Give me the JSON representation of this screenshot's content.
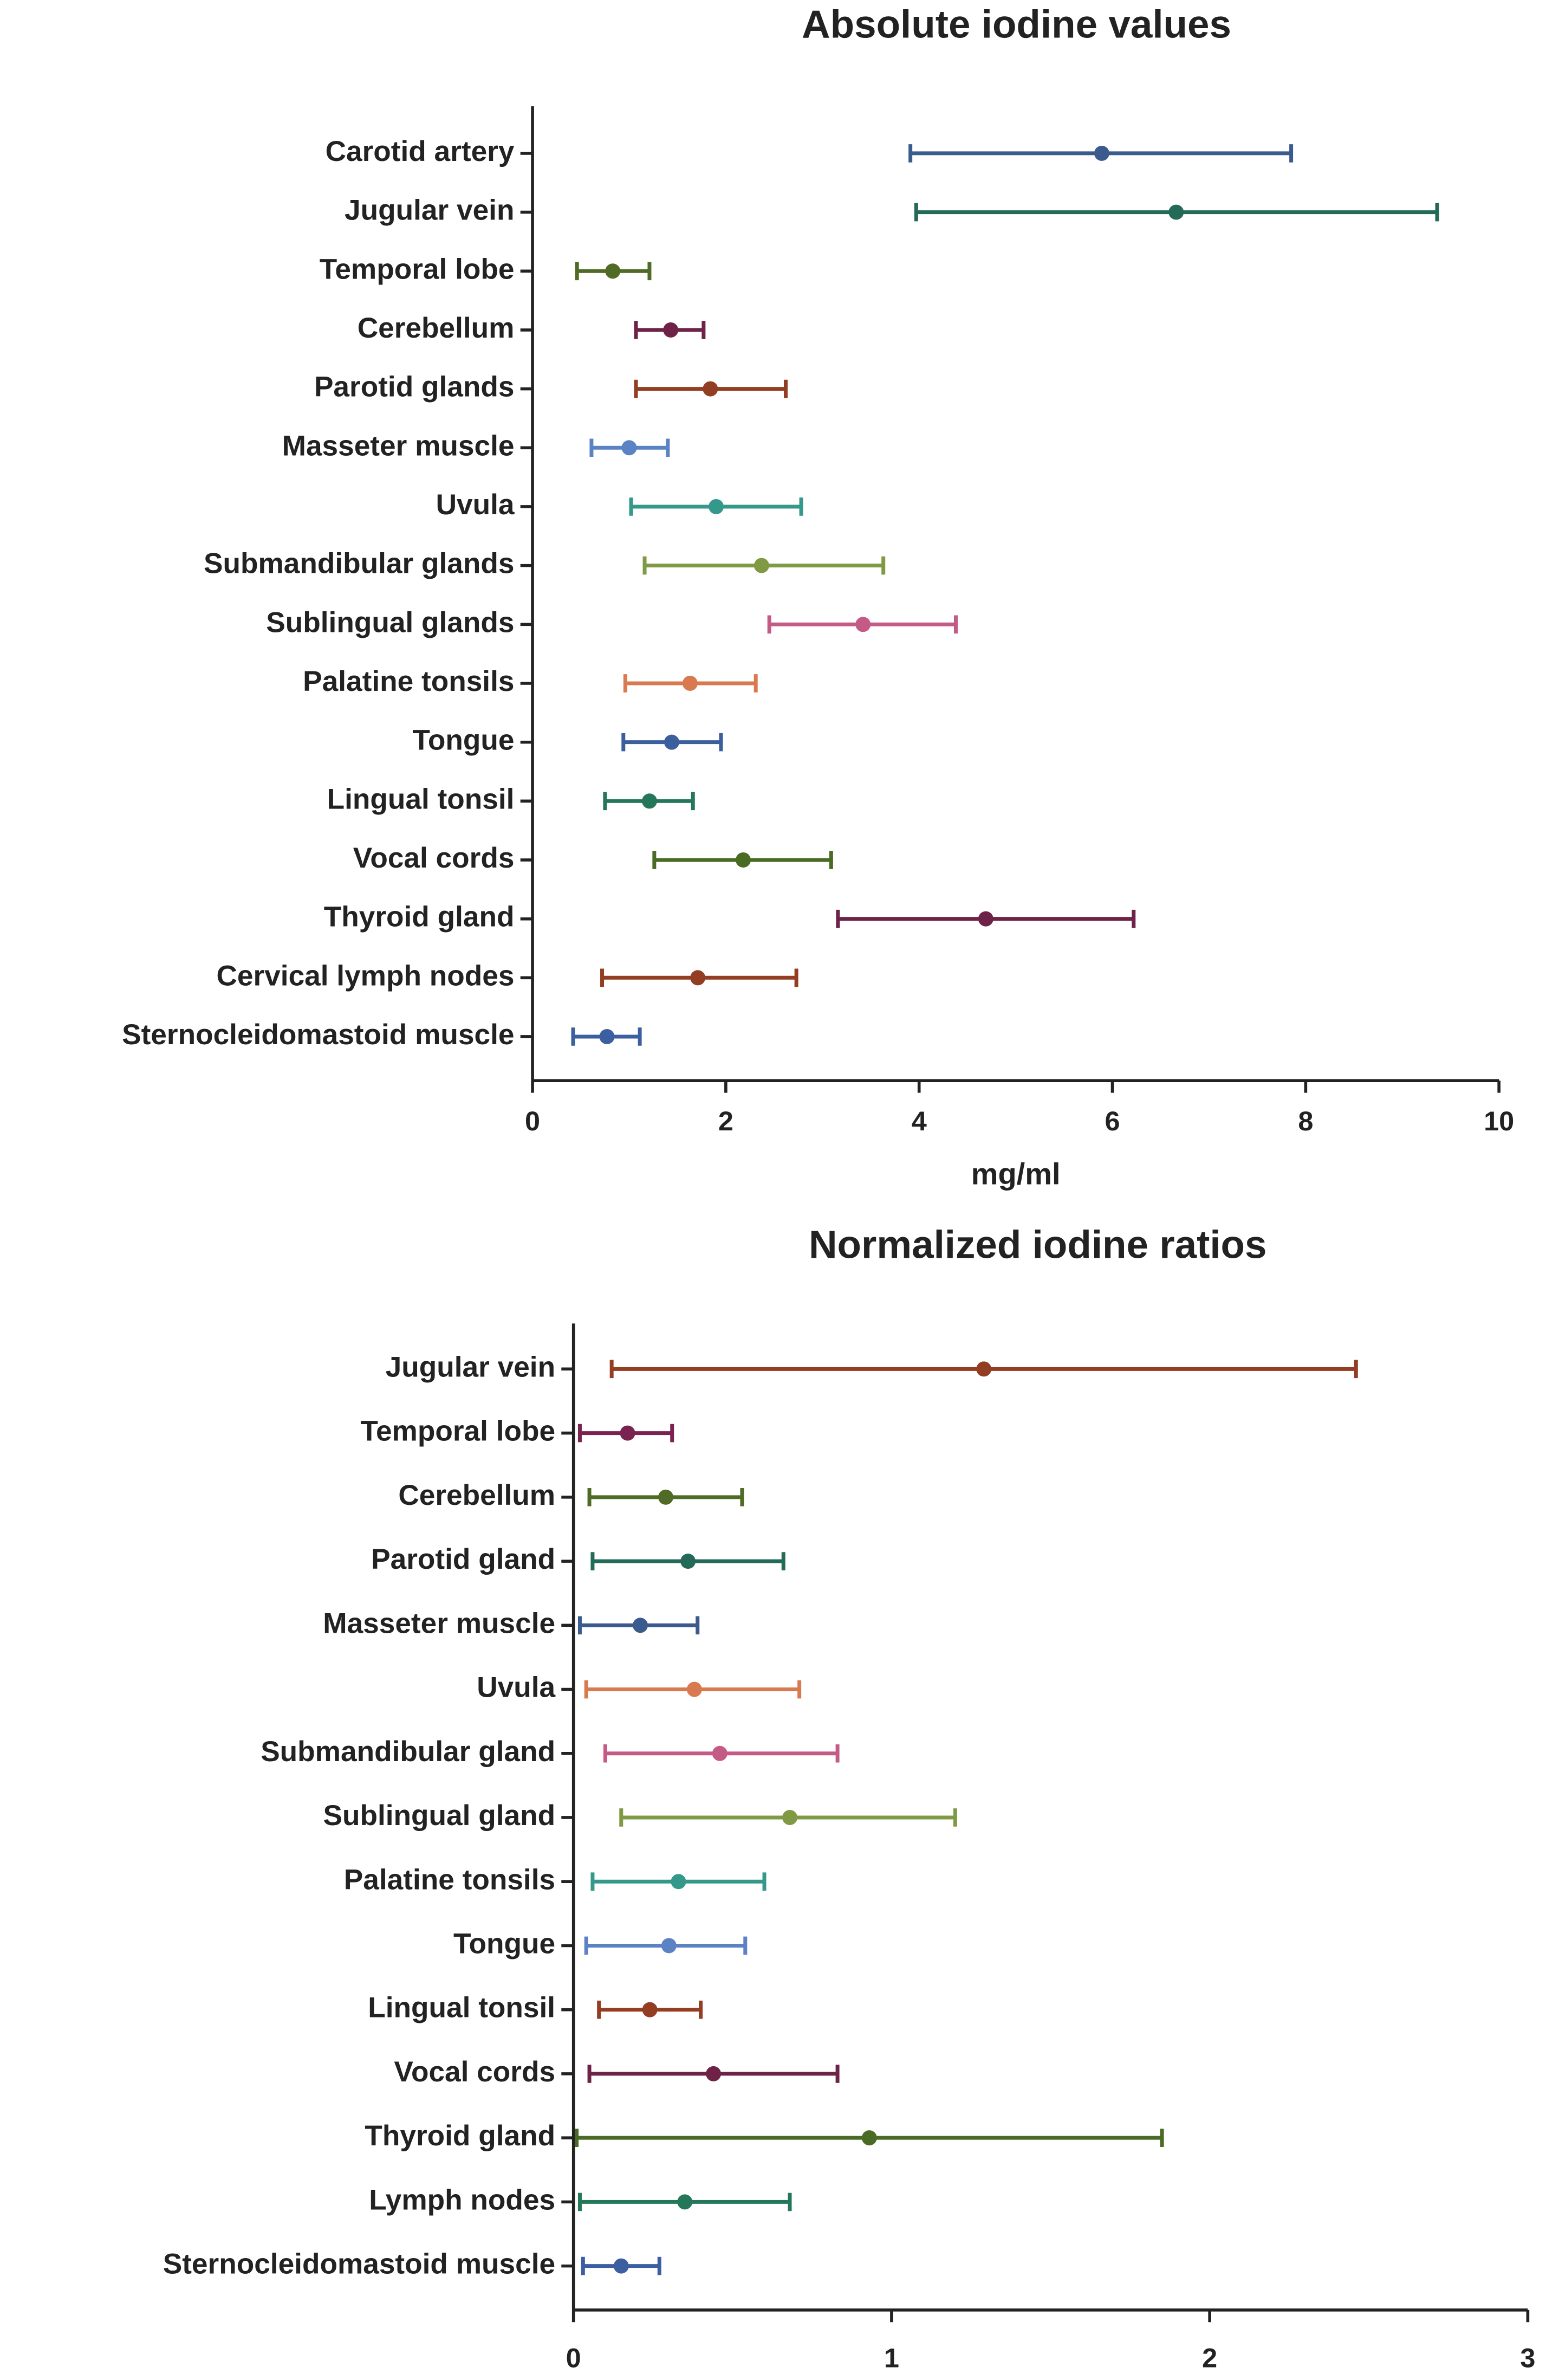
{
  "chart_data": [
    {
      "type": "errorbar",
      "title": "Absolute iodine values",
      "xlabel": "mg/ml",
      "categories": [
        "Carotid artery",
        "Jugular vein",
        "Temporal lobe",
        "Cerebellum",
        "Parotid glands",
        "Masseter muscle",
        "Uvula",
        "Submandibular glands",
        "Sublingual glands",
        "Palatine tonsils",
        "Tongue",
        "Lingual tonsil",
        "Vocal cords",
        "Thyroid gland",
        "Cervical lymph nodes",
        "Sternocleidomastoid muscle"
      ],
      "values": [
        5.89,
        6.66,
        0.83,
        1.43,
        1.84,
        1.0,
        1.9,
        2.37,
        3.42,
        1.63,
        1.44,
        1.21,
        2.18,
        4.69,
        1.71,
        0.77
      ],
      "lower": [
        3.91,
        3.97,
        0.46,
        1.07,
        1.07,
        0.61,
        1.02,
        1.16,
        2.45,
        0.96,
        0.94,
        0.75,
        1.26,
        3.16,
        0.72,
        0.42
      ],
      "upper": [
        7.85,
        9.36,
        1.21,
        1.77,
        2.62,
        1.4,
        2.78,
        3.63,
        4.38,
        2.31,
        1.95,
        1.66,
        3.09,
        6.22,
        2.73,
        1.11
      ],
      "colors": [
        "#3b5b8e",
        "#236b58",
        "#4f6b25",
        "#6e2248",
        "#933e22",
        "#5b82c4",
        "#34998a",
        "#7f9a43",
        "#c45b86",
        "#d9794f",
        "#3b5f9c",
        "#25775a",
        "#4a6b24",
        "#6e2248",
        "#933e22",
        "#3b5fa0"
      ],
      "xlim": [
        0,
        10
      ],
      "xticks": [
        0,
        2,
        4,
        6,
        8,
        10
      ]
    },
    {
      "type": "errorbar",
      "title": "Normalized iodine ratios",
      "categories": [
        "Jugular vein",
        "Temporal lobe",
        "Cerebellum",
        "Parotid gland",
        "Masseter muscle",
        "Uvula",
        "Submandibular gland",
        "Sublingual gland",
        "Palatine tonsils",
        "Tongue",
        "Lingual tonsil",
        "Vocal cords",
        "Thyroid gland",
        "Lymph nodes",
        "Sternocleidomastoid muscle"
      ],
      "values": [
        1.29,
        0.17,
        0.29,
        0.36,
        0.21,
        0.38,
        0.46,
        0.68,
        0.33,
        0.3,
        0.24,
        0.44,
        0.93,
        0.35,
        0.15
      ],
      "lower": [
        0.12,
        0.02,
        0.05,
        0.06,
        0.02,
        0.04,
        0.1,
        0.15,
        0.06,
        0.04,
        0.08,
        0.05,
        0.01,
        0.02,
        0.03
      ],
      "upper": [
        2.46,
        0.31,
        0.53,
        0.66,
        0.39,
        0.71,
        0.83,
        1.2,
        0.6,
        0.54,
        0.4,
        0.83,
        1.85,
        0.68,
        0.27
      ],
      "colors": [
        "#933e22",
        "#7a2350",
        "#4f6b25",
        "#236b58",
        "#3b5b8e",
        "#d9794f",
        "#c45b86",
        "#7f9a43",
        "#34998a",
        "#5b82c4",
        "#933e22",
        "#6e2248",
        "#4a6b24",
        "#25775a",
        "#3b5fa0"
      ],
      "xlim": [
        0,
        3
      ],
      "xticks": [
        0,
        1,
        2,
        3
      ]
    }
  ]
}
